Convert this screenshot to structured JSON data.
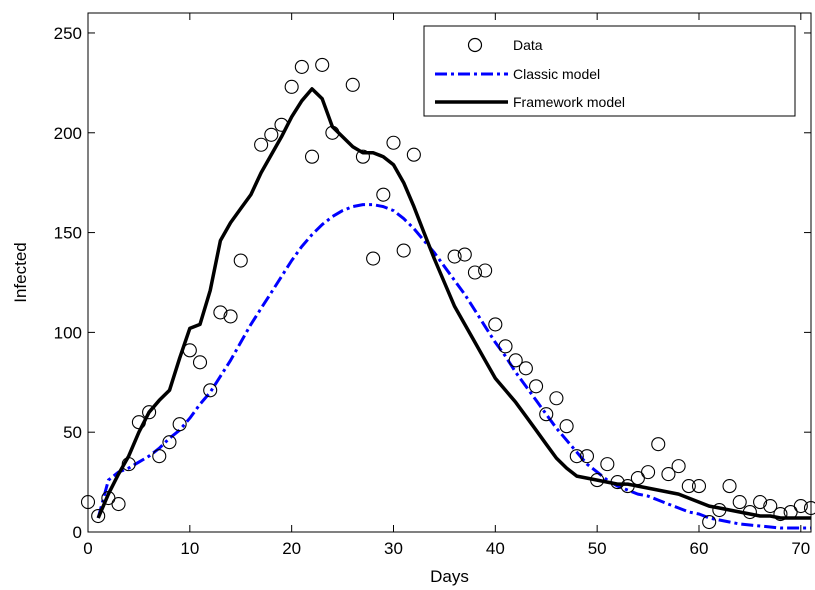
{
  "chart_data": {
    "type": "line",
    "xlabel": "Days",
    "ylabel": "Infected",
    "xlim": [
      0,
      71
    ],
    "ylim": [
      0,
      260
    ],
    "xticks": [
      0,
      10,
      20,
      30,
      40,
      50,
      60,
      70
    ],
    "yticks": [
      0,
      50,
      100,
      150,
      200,
      250
    ],
    "grid": false,
    "legend_position": "top-right",
    "legend": [
      "Data",
      "Classic model",
      "Framework model"
    ],
    "series": [
      {
        "name": "Data",
        "style": "markers",
        "marker": "open-circle",
        "color": "#000000",
        "x": [
          0,
          1,
          2,
          3,
          4,
          5,
          6,
          7,
          8,
          9,
          10,
          11,
          12,
          13,
          14,
          15,
          17,
          18,
          19,
          20,
          21,
          22,
          23,
          24,
          26,
          27,
          28,
          29,
          30,
          31,
          32,
          36,
          37,
          38,
          39,
          40,
          41,
          42,
          43,
          44,
          45,
          46,
          47,
          48,
          49,
          50,
          51,
          52,
          53,
          54,
          55,
          56,
          57,
          58,
          59,
          60,
          61,
          62,
          63,
          64,
          65,
          66,
          67,
          68,
          69,
          70,
          71
        ],
        "y": [
          15,
          8,
          17,
          14,
          34,
          55,
          60,
          38,
          45,
          54,
          91,
          85,
          71,
          110,
          108,
          136,
          194,
          199,
          204,
          223,
          233,
          188,
          234,
          200,
          224,
          188,
          137,
          169,
          195,
          141,
          189,
          138,
          139,
          130,
          131,
          104,
          93,
          86,
          82,
          73,
          59,
          67,
          53,
          38,
          38,
          26,
          34,
          25,
          23,
          27,
          30,
          44,
          29,
          33,
          23,
          23,
          5,
          11,
          23,
          15,
          10,
          15,
          13,
          9,
          10,
          13,
          12
        ]
      },
      {
        "name": "Classic model",
        "style": "dash-dot",
        "color": "#0000ff",
        "x": [
          1,
          2,
          3,
          4,
          5,
          6,
          7,
          8,
          9,
          10,
          11,
          12,
          13,
          14,
          15,
          16,
          17,
          18,
          19,
          20,
          21,
          22,
          23,
          24,
          25,
          26,
          27,
          28,
          29,
          30,
          31,
          32,
          33,
          34,
          35,
          36,
          37,
          38,
          39,
          40,
          41,
          42,
          43,
          44,
          45,
          46,
          47,
          48,
          49,
          50,
          51,
          52,
          53,
          54,
          55,
          56,
          57,
          58,
          59,
          60,
          61,
          62,
          63,
          64,
          65,
          66,
          67,
          68,
          69,
          70,
          71
        ],
        "y": [
          7,
          26,
          30,
          32,
          35,
          38,
          42,
          47,
          51,
          57,
          64,
          70,
          78,
          86,
          95,
          104,
          112,
          120,
          128,
          136,
          143,
          149,
          154,
          158,
          161,
          163,
          164,
          164,
          163,
          161,
          157,
          152,
          146,
          140,
          133,
          126,
          119,
          111,
          103,
          95,
          88,
          80,
          73,
          66,
          59,
          52,
          46,
          40,
          34,
          30,
          26,
          23,
          21,
          19,
          18,
          16,
          14,
          12,
          10,
          9,
          7,
          6,
          5,
          4,
          3.5,
          3,
          2.5,
          2,
          2,
          2,
          2
        ]
      },
      {
        "name": "Framework model",
        "style": "solid",
        "color": "#000000",
        "x": [
          1,
          2,
          3,
          4,
          5,
          6,
          7,
          8,
          9,
          10,
          11,
          12,
          13,
          14,
          15,
          16,
          17,
          18,
          19,
          20,
          21,
          22,
          23,
          24,
          25,
          26,
          27,
          28,
          29,
          30,
          31,
          32,
          33,
          34,
          35,
          36,
          37,
          38,
          39,
          40,
          41,
          42,
          43,
          44,
          45,
          46,
          47,
          48,
          49,
          50,
          51,
          52,
          53,
          54,
          55,
          56,
          57,
          58,
          59,
          60,
          61,
          62,
          63,
          64,
          65,
          66,
          67,
          68,
          69,
          70,
          71
        ],
        "y": [
          7,
          19,
          29,
          38,
          50,
          60,
          66,
          71,
          87,
          102,
          104,
          121,
          146,
          155,
          162,
          169,
          180,
          189,
          198,
          208,
          216,
          222,
          217,
          203,
          198,
          193,
          190,
          190,
          188,
          184,
          175,
          163,
          150,
          137,
          125,
          113,
          104,
          95,
          86,
          77,
          71,
          65,
          58,
          51,
          44,
          37,
          32,
          28,
          27,
          26,
          25,
          24,
          24,
          23,
          22,
          21,
          20,
          19,
          17,
          15,
          13,
          12,
          11,
          10,
          9,
          8,
          8,
          7,
          7,
          7,
          7
        ]
      }
    ]
  }
}
